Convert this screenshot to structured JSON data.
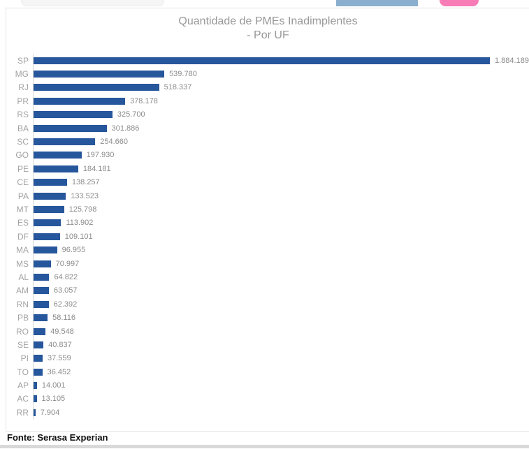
{
  "top_bar": {
    "search_pill_color": "#f5f5f5",
    "blue_button_color": "#8aaece",
    "pink_button_color": "#f87cb5"
  },
  "chart_data": {
    "type": "bar",
    "orientation": "horizontal",
    "title": "Quantidade de PMEs Inadimplentes",
    "subtitle": "- Por UF",
    "categories": [
      "SP",
      "MG",
      "RJ",
      "PR",
      "RS",
      "BA",
      "SC",
      "GO",
      "PE",
      "CE",
      "PA",
      "MT",
      "ES",
      "DF",
      "MA",
      "MS",
      "AL",
      "AM",
      "RN",
      "PB",
      "RO",
      "SE",
      "PI",
      "TO",
      "AP",
      "AC",
      "RR"
    ],
    "values": [
      1884189,
      539780,
      518337,
      378178,
      325700,
      301886,
      254660,
      197930,
      184181,
      138257,
      133523,
      125798,
      113902,
      109101,
      96955,
      70997,
      64822,
      63057,
      62392,
      58116,
      49548,
      40837,
      37559,
      36452,
      14001,
      13105,
      7904
    ],
    "value_labels": [
      "1.884.189",
      "539.780",
      "518.337",
      "378.178",
      "325.700",
      "301.886",
      "254.660",
      "197.930",
      "184.181",
      "138.257",
      "133.523",
      "125.798",
      "113.902",
      "109.101",
      "96.955",
      "70.997",
      "64.822",
      "63.057",
      "62.392",
      "58.116",
      "49.548",
      "40.837",
      "37.559",
      "36.452",
      "14.001",
      "13.105",
      "7.904"
    ],
    "xlim": [
      0,
      1884189
    ],
    "bar_color": "#26569b",
    "axis_line_color": "#d9d9d9",
    "grid": false,
    "legend": false
  },
  "footer": {
    "source": "Fonte: Serasa Experian"
  }
}
